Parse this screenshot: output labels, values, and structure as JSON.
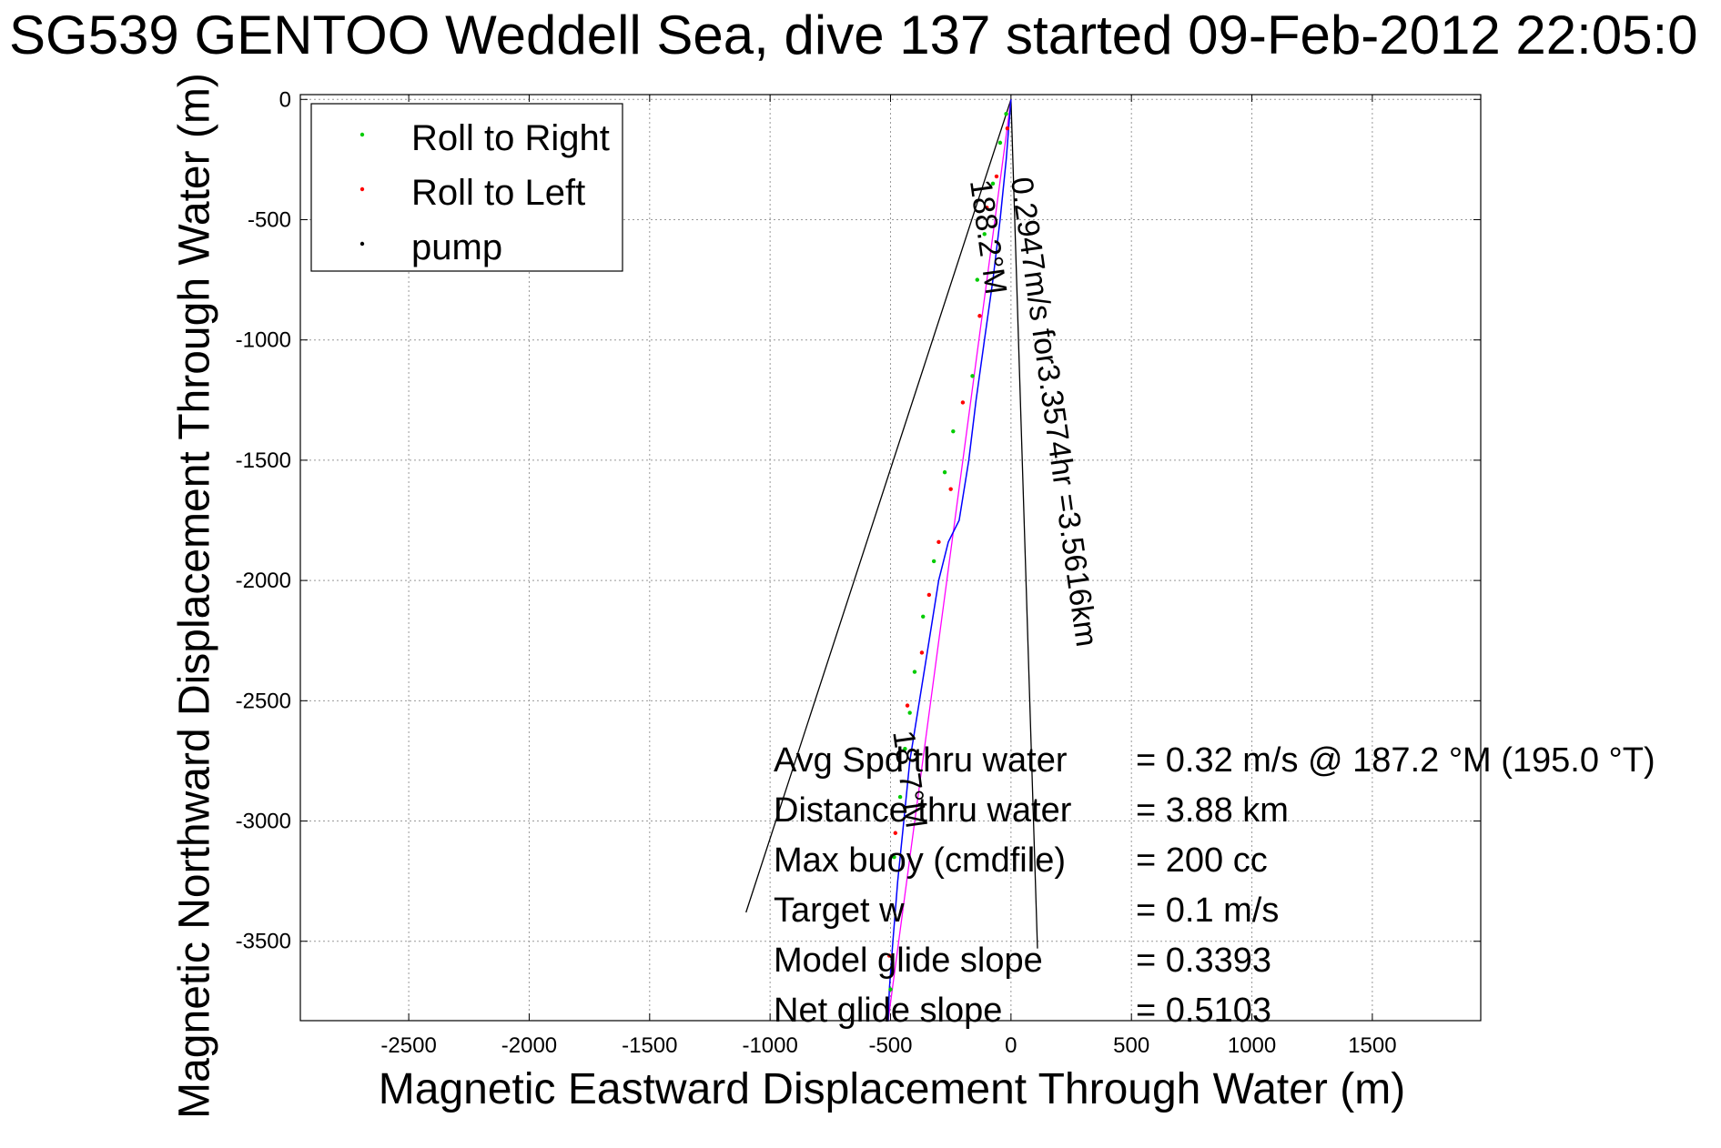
{
  "chart_data": {
    "type": "line",
    "title": "SG539 GENTOO Weddell Sea, dive 137 started 09-Feb-2012 22:05:0",
    "xlabel": "Magnetic Eastward Displacement Through Water (m)",
    "ylabel": "Magnetic Northward Displacement Through Water (m)",
    "xlim": [
      -2950,
      1950
    ],
    "ylim": [
      -3830,
      20
    ],
    "xticks": [
      -2500,
      -2000,
      -1500,
      -1000,
      -500,
      0,
      500,
      1000,
      1500
    ],
    "yticks": [
      0,
      -500,
      -1000,
      -1500,
      -2000,
      -2500,
      -3000,
      -3500
    ],
    "grid": true,
    "legend_position": "top-left",
    "legend": [
      {
        "label": "Roll to Right",
        "color": "#00cc00"
      },
      {
        "label": "Roll to Left",
        "color": "#ff0000"
      },
      {
        "label": "pump",
        "color": "#000000"
      }
    ],
    "track": {
      "name": "track",
      "color": "#0000ff",
      "x": [
        0,
        -20,
        -45,
        -75,
        -110,
        -145,
        -175,
        -215,
        -260,
        -300,
        -340,
        -380,
        -420,
        -445,
        -470,
        -490,
        -505,
        -510
      ],
      "y": [
        0,
        -250,
        -500,
        -750,
        -1000,
        -1250,
        -1500,
        -1750,
        -1840,
        -2000,
        -2250,
        -2500,
        -2750,
        -3000,
        -3250,
        -3500,
        -3700,
        -3830
      ]
    },
    "heading_line": {
      "name": "heading",
      "color": "#ff00ff",
      "x": [
        0,
        -510
      ],
      "y": [
        0,
        -3830
      ]
    },
    "right_roll_points": {
      "x": [
        -20,
        -45,
        -75,
        -110,
        -140,
        -160,
        -240,
        -275,
        -320,
        -365,
        -400,
        -420,
        -440,
        -460,
        -485,
        -500
      ],
      "y": [
        -60,
        -180,
        -350,
        -560,
        -750,
        -1150,
        -1380,
        -1550,
        -1920,
        -2150,
        -2380,
        -2550,
        -2700,
        -2900,
        -3150,
        -3700
      ]
    },
    "left_roll_points": {
      "x": [
        -15,
        -60,
        -100,
        -130,
        -200,
        -250,
        -300,
        -340,
        -370,
        -430,
        -480,
        -505
      ],
      "y": [
        -120,
        -320,
        -450,
        -900,
        -1260,
        -1620,
        -1840,
        -2060,
        -2300,
        -2520,
        -3050,
        -3560
      ]
    },
    "annotation_lines": [
      {
        "x": [
          0,
          -1100
        ],
        "y": [
          0,
          -3380
        ]
      },
      {
        "x": [
          0,
          110
        ],
        "y": [
          0,
          -3530
        ]
      }
    ],
    "segment_annotations": [
      {
        "text": "0.2947m/s for3.3574hr =3.5616km",
        "x": 0,
        "y": -330,
        "rotation": 82
      },
      {
        "text": "188.2°M",
        "x": -170,
        "y": -340,
        "rotation": 82
      },
      {
        "text": "18.7°M",
        "x": -490,
        "y": -2630,
        "rotation": 82
      }
    ],
    "summary": [
      {
        "label": "Avg Spd thru water",
        "value": "=  0.32 m/s @ 187.2 °M (195.0 °T)"
      },
      {
        "label": "Distance thru water",
        "value": "=  3.88 km"
      },
      {
        "label": "Max buoy (cmdfile)",
        "value": "= 200 cc"
      },
      {
        "label": "Target w",
        "value": "= 0.1 m/s"
      },
      {
        "label": "Model glide slope",
        "value": "= 0.3393"
      },
      {
        "label": "Net glide slope",
        "value": "= 0.5103"
      }
    ]
  }
}
